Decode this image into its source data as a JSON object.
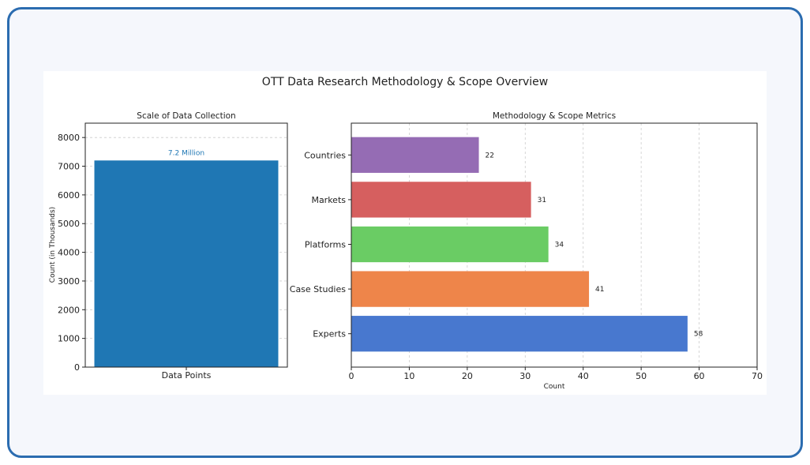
{
  "figure_title": "OTT Data Research Methodology & Scope Overview",
  "chart_data": [
    {
      "type": "bar",
      "title": "Scale of Data Collection",
      "xlabel": "",
      "ylabel": "Count (in Thousands)",
      "categories": [
        "Data Points"
      ],
      "values": [
        7200
      ],
      "data_labels": [
        "7.2 Million"
      ],
      "ylim": [
        0,
        8500
      ],
      "yticks": [
        0,
        1000,
        2000,
        3000,
        4000,
        5000,
        6000,
        7000,
        8000
      ],
      "grid": "horizontal-dashed",
      "colors": [
        "#1f77b4"
      ],
      "label_color": "#1f77b4"
    },
    {
      "type": "bar",
      "orientation": "horizontal",
      "title": "Methodology & Scope Metrics",
      "xlabel": "Count",
      "ylabel": "",
      "categories": [
        "Experts",
        "Case Studies",
        "Platforms",
        "Markets",
        "Countries"
      ],
      "values": [
        58,
        41,
        34,
        31,
        22
      ],
      "xlim": [
        0,
        70
      ],
      "xticks": [
        0,
        10,
        20,
        30,
        40,
        50,
        60,
        70
      ],
      "grid": "vertical-dashed",
      "colors": [
        "#4878cf",
        "#ee854a",
        "#6acc64",
        "#d65f5f",
        "#956cb4"
      ]
    }
  ]
}
